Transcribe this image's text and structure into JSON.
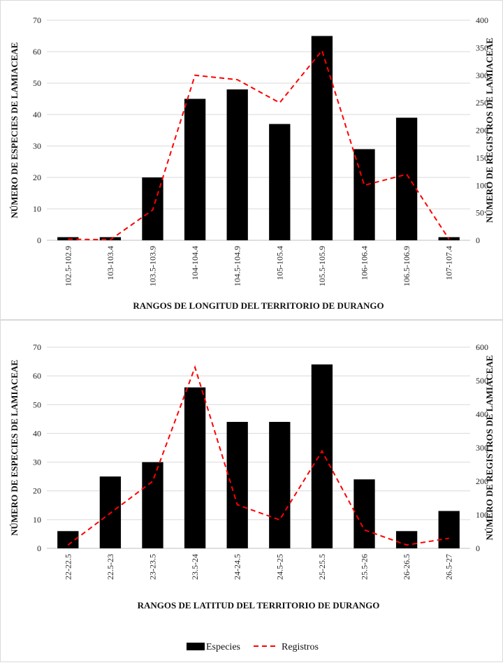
{
  "chart_data": [
    {
      "type": "bar+line",
      "categories": [
        "102.5-102.9",
        "103-103.4",
        "103.5-103.9",
        "104-104.4",
        "104.5-104.9",
        "105-105.4",
        "105.5-105.9",
        "106-106.4",
        "106.5-106.9",
        "107-107.4"
      ],
      "series": [
        {
          "name": "Especies",
          "type": "bar",
          "axis": "left",
          "color": "#000000",
          "values": [
            1,
            1,
            20,
            45,
            48,
            37,
            65,
            29,
            39,
            1
          ]
        },
        {
          "name": "Registros",
          "type": "line",
          "style": "dashed",
          "axis": "right",
          "color": "#ff0000",
          "values": [
            2,
            1,
            55,
            300,
            292,
            250,
            345,
            100,
            120,
            2
          ]
        }
      ],
      "xlabel": "RANGOS DE LONGITUD DEL TERRITORIO DE DURANGO",
      "ylabel_left": "NÚMERO DE ESPECIES DE LAMIACEAE",
      "ylabel_right": "NÚMERO DE REGISTROS DE LAMIACEAE",
      "ylim_left": [
        0,
        70
      ],
      "ylim_right": [
        0,
        400
      ],
      "yticks_left": [
        "0",
        "10",
        "20",
        "30",
        "40",
        "50",
        "60",
        "70"
      ],
      "yticks_right": [
        "0",
        "50",
        "100",
        "150",
        "200",
        "250",
        "300",
        "350",
        "400"
      ],
      "grid": true
    },
    {
      "type": "bar+line",
      "categories": [
        "22-22.5",
        "22.5-23",
        "23-23.5",
        "23.5-24",
        "24-24.5",
        "24.5-25",
        "25-25.5",
        "25.5-26",
        "26-26.5",
        "26.5-27"
      ],
      "series": [
        {
          "name": "Especies",
          "type": "bar",
          "axis": "left",
          "color": "#000000",
          "values": [
            6,
            25,
            30,
            56,
            44,
            44,
            64,
            24,
            6,
            13
          ]
        },
        {
          "name": "Registros",
          "type": "line",
          "style": "dashed",
          "axis": "right",
          "color": "#ff0000",
          "values": [
            10,
            105,
            200,
            540,
            130,
            85,
            290,
            55,
            10,
            30
          ]
        }
      ],
      "xlabel": "RANGOS DE LATITUD DEL TERRITORIO DE DURANGO",
      "ylabel_left": "NÚMERO DE ESPECIES DE LAMIACEAE",
      "ylabel_right": "NÚMERO DE REGISTROS DE LAMIACEAE",
      "ylim_left": [
        0,
        70
      ],
      "ylim_right": [
        0,
        600
      ],
      "yticks_left": [
        "0",
        "10",
        "20",
        "30",
        "40",
        "50",
        "60",
        "70"
      ],
      "yticks_right": [
        "0",
        "100",
        "200",
        "300",
        "400",
        "500",
        "600"
      ],
      "grid": true,
      "legend": {
        "position": "bottom-center",
        "entries": [
          "Especies",
          "Registros"
        ]
      }
    }
  ]
}
